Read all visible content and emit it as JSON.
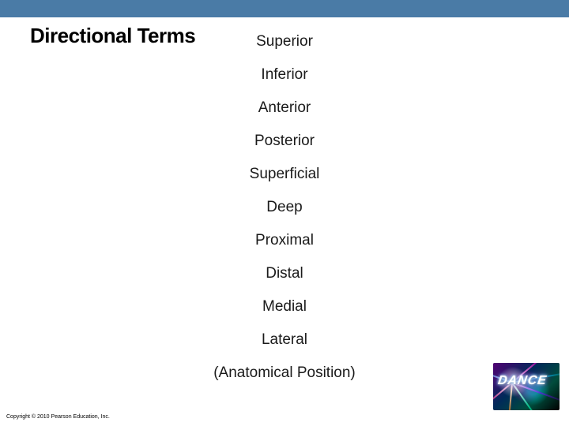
{
  "header": {
    "bar_color": "#4a7ba6",
    "title": "Directional Terms"
  },
  "terms": [
    "Superior",
    "Inferior",
    "Anterior",
    "Posterior",
    "Superficial",
    "Deep",
    "Proximal",
    "Distal",
    "Medial",
    "Lateral",
    "(Anatomical Position)"
  ],
  "neon": {
    "label": "DANCE"
  },
  "footer": {
    "copyright": "Copyright © 2010 Pearson Education, Inc."
  }
}
